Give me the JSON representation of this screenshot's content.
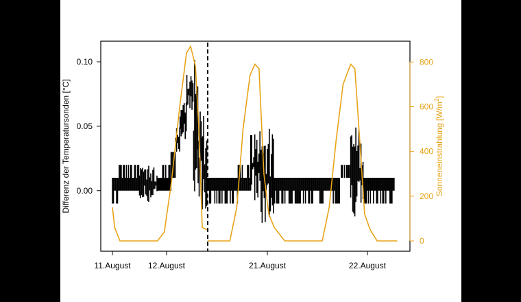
{
  "chart_data": {
    "type": "line",
    "xlabel": "",
    "x_ticks": [
      {
        "label": "11.August",
        "t": "11.08 00:00"
      },
      {
        "label": "12.August",
        "t": "12.08 00:00"
      },
      {
        "label": "21.August",
        "t": "21.08 00:00"
      },
      {
        "label": "22.August",
        "t": "22.08 00:00"
      }
    ],
    "x_axis_break": {
      "from": "12.08 18:00",
      "to": "20.08 09:40",
      "style": "dashed vertical line"
    },
    "y_left": {
      "label": "Differenz der Temperatursonden [°C]",
      "ticks": [
        "0.00",
        "0.05",
        "0.10"
      ],
      "range": [
        -0.047,
        0.116
      ],
      "color": "#000000"
    },
    "y_right": {
      "label": "Sonneneinstrahlung [W/m²]",
      "ticks": [
        "0",
        "200",
        "400",
        "600",
        "800"
      ],
      "range": [
        -46,
        893
      ],
      "color": "#E8A317"
    },
    "grid": false,
    "series": [
      {
        "axis": "left",
        "color": "#000000",
        "style": "band",
        "note_format": "[start time, min, max]",
        "segments": [
          [
            [
              "11.08 00:00",
              -0.01,
              0.01
            ],
            [
              "11.08 03:00",
              0,
              0.02
            ],
            [
              "11.08 12:00",
              -0.01,
              0.02
            ],
            [
              "11.08 20:00",
              0,
              0.02
            ],
            [
              "12.08 02:00",
              0.01,
              0.03
            ],
            [
              "12.08 04:00",
              0.03,
              0.05
            ],
            [
              "12.08 06:00",
              0.04,
              0.07
            ],
            [
              "12.08 09:00",
              0.06,
              0.09
            ],
            [
              "12.08 12:00",
              -0.03,
              0.11
            ],
            [
              "12.08 14:00",
              -0.04,
              0.09
            ],
            [
              "12.08 16:00",
              -0.02,
              0.06
            ],
            [
              "12.08 18:00",
              0,
              0
            ]
          ],
          [
            [
              "20.08 09:40",
              -0.01,
              0.01
            ],
            [
              "20.08 17:00",
              0,
              0.02
            ],
            [
              "20.08 20:00",
              -0.01,
              0.05
            ],
            [
              "20.08 22:30",
              -0.03,
              0.05
            ],
            [
              "21.08 01:30",
              -0.01,
              0.01
            ],
            [
              "21.08 17:30",
              0.01,
              0.02
            ],
            [
              "21.08 20:00",
              -0.02,
              0.05
            ],
            [
              "21.08 23:00",
              -0.01,
              0.01
            ],
            [
              "22.08 06:30",
              0,
              0
            ]
          ]
        ]
      },
      {
        "axis": "right",
        "color": "#E8A317",
        "style": "line",
        "segments": [
          [
            [
              "11.08 00:00",
              150
            ],
            [
              "11.08 01:00",
              60
            ],
            [
              "11.08 03:20",
              0
            ],
            [
              "11.08 20:00",
              0
            ],
            [
              "11.08 23:00",
              40
            ],
            [
              "12.08 02:00",
              250
            ],
            [
              "12.08 05:50",
              600
            ],
            [
              "12.08 08:50",
              840
            ],
            [
              "12.08 10:40",
              870
            ],
            [
              "12.08 12:50",
              780
            ],
            [
              "12.08 14:20",
              500
            ],
            [
              "12.08 15:50",
              60
            ],
            [
              "12.08 18:00",
              50
            ]
          ],
          [
            [
              "20.08 09:40",
              0
            ],
            [
              "20.08 15:00",
              0
            ],
            [
              "20.08 16:40",
              150
            ],
            [
              "20.08 18:10",
              500
            ],
            [
              "20.08 19:50",
              740
            ],
            [
              "20.08 21:00",
              790
            ],
            [
              "20.08 22:00",
              770
            ],
            [
              "20.08 23:10",
              300
            ],
            [
              "21.08 00:20",
              120
            ],
            [
              "21.08 01:40",
              60
            ],
            [
              "21.08 04:10",
              0
            ],
            [
              "21.08 13:10",
              0
            ],
            [
              "21.08 14:50",
              150
            ],
            [
              "21.08 16:30",
              450
            ],
            [
              "21.08 18:10",
              700
            ],
            [
              "21.08 20:00",
              790
            ],
            [
              "21.08 21:00",
              770
            ],
            [
              "21.08 22:10",
              450
            ],
            [
              "21.08 23:20",
              120
            ],
            [
              "22.08 00:40",
              50
            ],
            [
              "22.08 02:20",
              0
            ],
            [
              "22.08 07:10",
              0
            ]
          ]
        ]
      }
    ]
  }
}
